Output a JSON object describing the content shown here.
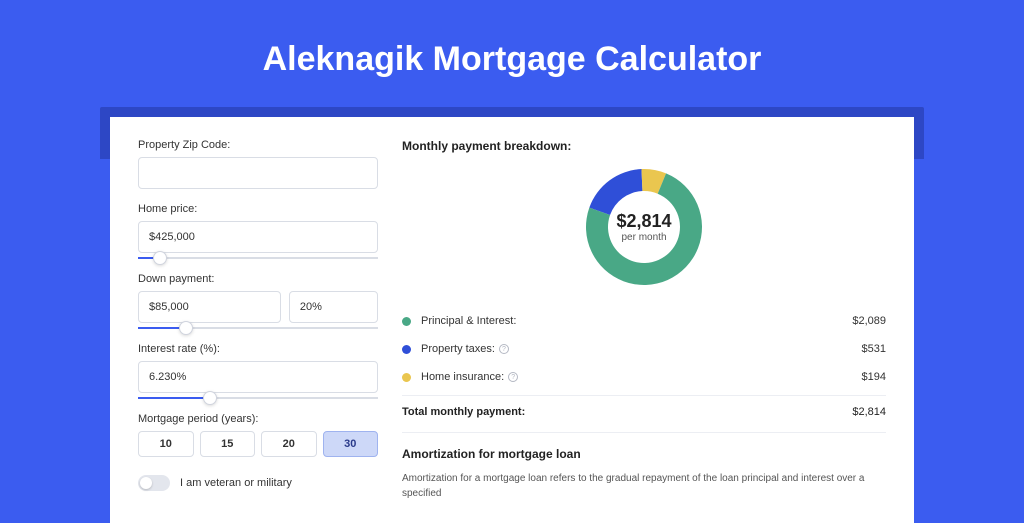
{
  "title": "Aleknagik Mortgage Calculator",
  "form": {
    "zip_label": "Property Zip Code:",
    "zip_value": "",
    "home_price_label": "Home price:",
    "home_price_value": "$425,000",
    "home_price_slider_pct": 9,
    "down_label": "Down payment:",
    "down_value": "$85,000",
    "down_pct_value": "20%",
    "down_slider_pct": 20,
    "rate_label": "Interest rate (%):",
    "rate_value": "6.230%",
    "rate_slider_pct": 30,
    "period_label": "Mortgage period (years):",
    "periods": [
      "10",
      "15",
      "20",
      "30"
    ],
    "period_active_index": 3,
    "veteran_label": "I am veteran or military",
    "veteran_on": false
  },
  "breakdown": {
    "title": "Monthly payment breakdown:",
    "donut_amount": "$2,814",
    "donut_sub": "per month",
    "donut_segments": [
      {
        "label": "Principal & Interest",
        "value": 2089,
        "color": "#49a886",
        "pct": 74.2
      },
      {
        "label": "Property taxes",
        "value": 531,
        "color": "#2f4fd8",
        "pct": 18.9
      },
      {
        "label": "Home insurance",
        "value": 194,
        "color": "#eac64f",
        "pct": 6.9
      }
    ],
    "items": [
      {
        "label": "Principal & Interest:",
        "value": "$2,089",
        "color": "#49a886",
        "info": false
      },
      {
        "label": "Property taxes:",
        "value": "$531",
        "color": "#2f4fd8",
        "info": true
      },
      {
        "label": "Home insurance:",
        "value": "$194",
        "color": "#eac64f",
        "info": true
      }
    ],
    "total_label": "Total monthly payment:",
    "total_value": "$2,814"
  },
  "amortization": {
    "title": "Amortization for mortgage loan",
    "text": "Amortization for a mortgage loan refers to the gradual repayment of the loan principal and interest over a specified"
  },
  "colors": {
    "bg": "#3b5cf0",
    "shadow": "#2d47c5",
    "green": "#49a886",
    "blue": "#2f4fd8",
    "yellow": "#eac64f"
  }
}
